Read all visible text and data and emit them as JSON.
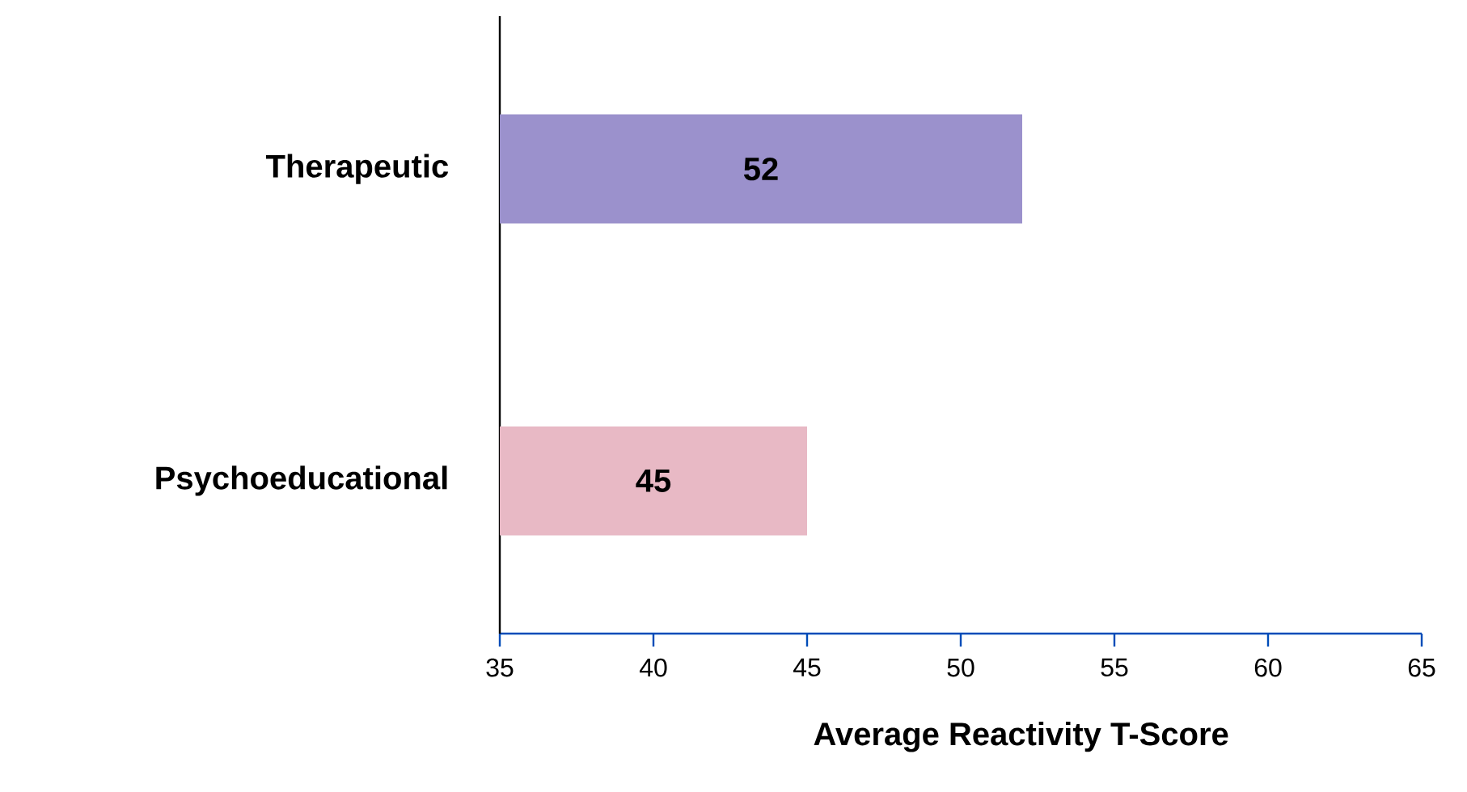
{
  "chart_data": {
    "type": "bar",
    "orientation": "horizontal",
    "xlabel": "Average Reactivity T-Score",
    "categories": [
      "Therapeutic",
      "Psychoeducational"
    ],
    "values": [
      52,
      45
    ],
    "colors": [
      "#9b91cc",
      "#e8b9c5"
    ],
    "xlim": [
      35,
      65
    ],
    "xticks": [
      35,
      40,
      45,
      50,
      55,
      60,
      65
    ],
    "data_labels": true,
    "grid": false
  }
}
